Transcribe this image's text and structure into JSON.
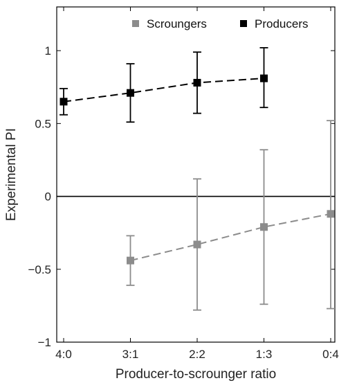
{
  "chart_data": {
    "type": "line",
    "categories": [
      "4:0",
      "3:1",
      "2:2",
      "1:3",
      "0:4"
    ],
    "xlabel": "Producer-to-scrounger ratio",
    "ylabel": "Experimental PI",
    "ylim": [
      -1,
      1.3
    ],
    "yticks": [
      {
        "value": 1,
        "label": "1"
      },
      {
        "value": 0.5,
        "label": "0.5"
      },
      {
        "value": 0,
        "label": "0"
      },
      {
        "value": -0.5,
        "label": "−0.5"
      },
      {
        "value": -1,
        "label": "−1"
      }
    ],
    "reference_line": 0,
    "grid": false,
    "legend_position": "top-right",
    "series": [
      {
        "name": "Scroungers",
        "color": "#8c8c8c",
        "marker": "square",
        "line_style": "dashed",
        "values": [
          null,
          -0.44,
          -0.33,
          -0.21,
          -0.12
        ],
        "error_low": [
          null,
          -0.61,
          -0.78,
          -0.74,
          -0.77
        ],
        "error_high": [
          null,
          -0.27,
          0.12,
          0.32,
          0.52
        ]
      },
      {
        "name": "Producers",
        "color": "#000000",
        "marker": "square",
        "line_style": "dashed",
        "values": [
          0.65,
          0.71,
          0.78,
          0.81,
          null
        ],
        "error_low": [
          0.56,
          0.51,
          0.57,
          0.61,
          null
        ],
        "error_high": [
          0.74,
          0.91,
          0.99,
          1.02,
          null
        ]
      }
    ]
  }
}
